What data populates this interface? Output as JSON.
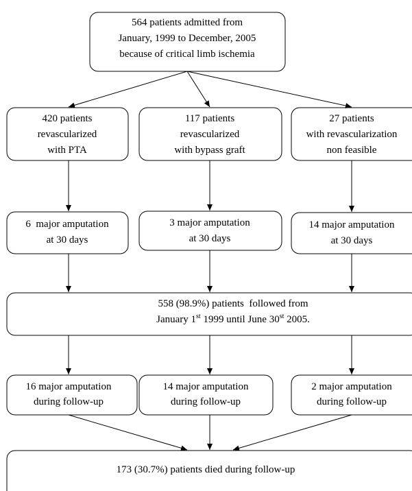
{
  "nodes": [
    {
      "lines": [
        [
          "564 patients admitted from"
        ],
        [
          "January, 1999 to December, 2005"
        ],
        [
          "because of critical limb ischemia"
        ]
      ]
    },
    {
      "lines": [
        [
          "420 patients"
        ],
        [
          "revascularized"
        ],
        [
          "with PTA"
        ]
      ]
    },
    {
      "lines": [
        [
          "117 patients"
        ],
        [
          "revascularized"
        ],
        [
          "with bypass graft"
        ]
      ]
    },
    {
      "lines": [
        [
          "27 patients"
        ],
        [
          "with revascularization"
        ],
        [
          "non feasible"
        ]
      ]
    },
    {
      "lines": [
        [
          "6  major amputation"
        ],
        [
          "at 30 days"
        ]
      ]
    },
    {
      "lines": [
        [
          "3 major amputation"
        ],
        [
          "at 30 days"
        ]
      ]
    },
    {
      "lines": [
        [
          "14 major amputation"
        ],
        [
          "at 30 days"
        ]
      ]
    },
    {
      "lines": [
        [
          "558 (98.9%) patients  followed from"
        ],
        [
          "January 1",
          "st",
          " 1999 until June 30",
          "st",
          " 2005."
        ]
      ]
    },
    {
      "lines": [
        [
          "16 major amputation"
        ],
        [
          "during follow-up"
        ]
      ]
    },
    {
      "lines": [
        [
          "14 major amputation"
        ],
        [
          "during follow-up"
        ]
      ]
    },
    {
      "lines": [
        [
          "2 major amputation"
        ],
        [
          "during follow-up"
        ]
      ]
    },
    {
      "lines": [
        [
          "173 (30.7%) patients died during follow-up"
        ]
      ]
    }
  ]
}
